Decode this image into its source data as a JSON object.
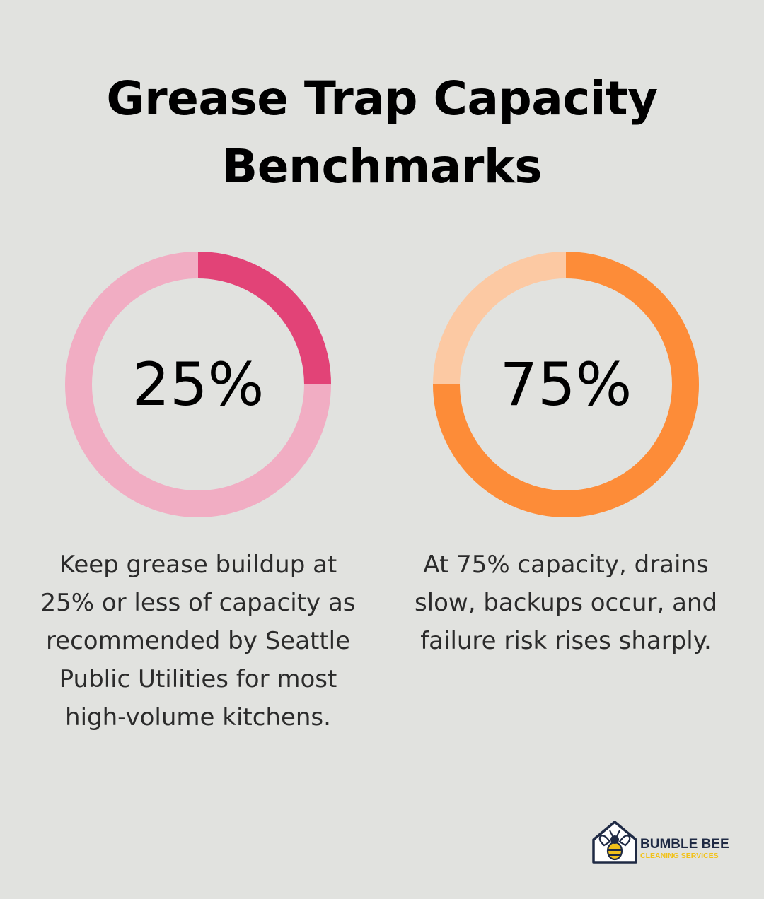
{
  "title": {
    "line1": "Grease Trap Capacity",
    "line2": "Benchmarks"
  },
  "chart_data": [
    {
      "type": "pie",
      "values": [
        25,
        75
      ],
      "value_label": "25%",
      "colors": {
        "filled": "#e24377",
        "remaining": "#f1adc3"
      }
    },
    {
      "type": "pie",
      "values": [
        75,
        25
      ],
      "value_label": "75%",
      "colors": {
        "filled": "#fd8c38",
        "remaining": "#fcc9a3"
      }
    }
  ],
  "descriptions": [
    {
      "lines": [
        "Keep grease buildup at",
        "25% or less of capacity as",
        "recommended by Seattle",
        "Public Utilities for most",
        "high-volume kitchens."
      ]
    },
    {
      "lines": [
        "At 75% capacity, drains",
        "slow, backups occur, and",
        "failure risk rises sharply."
      ]
    }
  ],
  "logo": {
    "name": "BUMBLE BEE",
    "tagline": "CLEANING SERVICES",
    "icon": "bee-house-icon",
    "colors": {
      "navy": "#1f2a44",
      "yellow": "#f2c21b"
    }
  }
}
